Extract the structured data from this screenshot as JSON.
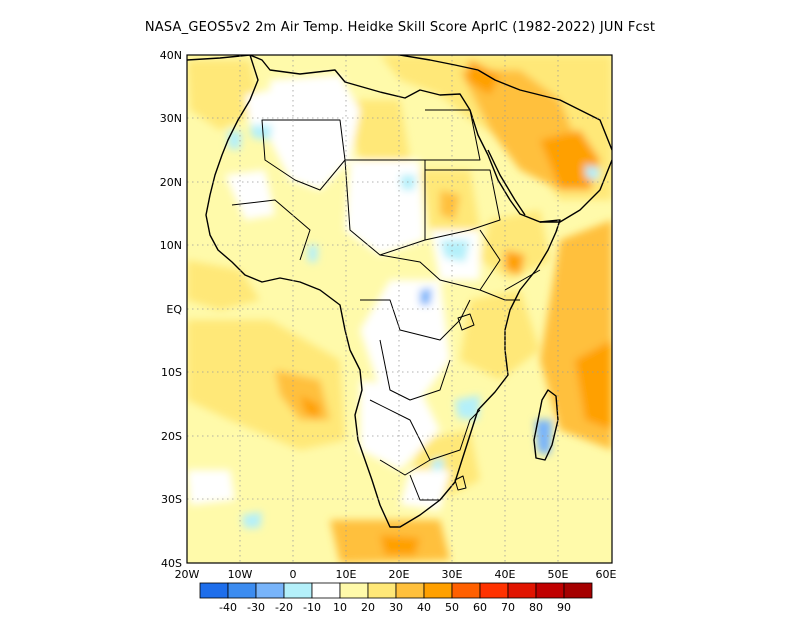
{
  "title": "NASA_GEOS5v2  2m Air Temp. Heidke Skill Score AprIC (1982-2022) JUN Fcst",
  "map": {
    "lat_labels": [
      "40N",
      "30N",
      "20N",
      "10N",
      "EQ",
      "10S",
      "20S",
      "30S",
      "40S"
    ],
    "lon_labels": [
      "20W",
      "10W",
      "0",
      "10E",
      "20E",
      "30E",
      "40E",
      "50E",
      "60E"
    ]
  },
  "colorbar": {
    "labels": [
      "-40",
      "-30",
      "-20",
      "-10",
      "10",
      "20",
      "30",
      "40",
      "50",
      "60",
      "70",
      "80",
      "90"
    ],
    "colors": [
      "#1e6eeb",
      "#3c8cf0",
      "#78b4fa",
      "#b4f0fa",
      "#ffffff",
      "#fffaaa",
      "#ffe878",
      "#ffc03c",
      "#ffa000",
      "#ff6000",
      "#ff3200",
      "#e11400",
      "#c00000",
      "#a50000"
    ]
  }
}
